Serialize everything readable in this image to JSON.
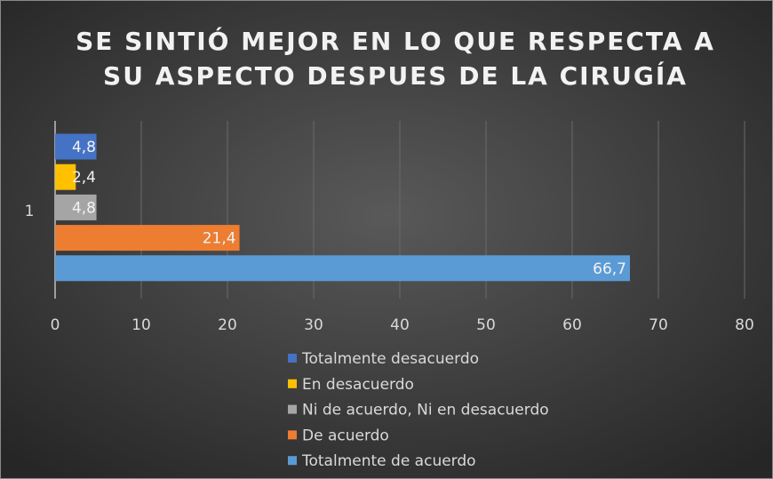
{
  "chart_data": {
    "type": "bar",
    "orientation": "horizontal",
    "title": [
      "SE SINTIÓ MEJOR EN LO QUE RESPECTA A",
      "SU ASPECTO DESPUES DE LA CIRUGÍA"
    ],
    "categories": [
      "1"
    ],
    "series": [
      {
        "name": "Totalmente desacuerdo",
        "color": "#4472c4",
        "values": [
          4.8
        ],
        "value_labels": [
          "4,8"
        ]
      },
      {
        "name": "En desacuerdo",
        "color": "#ffc000",
        "values": [
          2.4
        ],
        "value_labels": [
          "2,4"
        ]
      },
      {
        "name": "Ni de acuerdo, Ni en desacuerdo",
        "color": "#a5a5a5",
        "values": [
          4.8
        ],
        "value_labels": [
          "4,8"
        ]
      },
      {
        "name": "De acuerdo",
        "color": "#ed7d31",
        "values": [
          21.4
        ],
        "value_labels": [
          "21,4"
        ]
      },
      {
        "name": "Totalmente de acuerdo",
        "color": "#5b9bd5",
        "values": [
          66.7
        ],
        "value_labels": [
          "66,7"
        ]
      }
    ],
    "xlim": [
      0,
      80
    ],
    "xticks": [
      0,
      10,
      20,
      30,
      40,
      50,
      60,
      70,
      80
    ],
    "grid": true,
    "legend": "bottom"
  }
}
